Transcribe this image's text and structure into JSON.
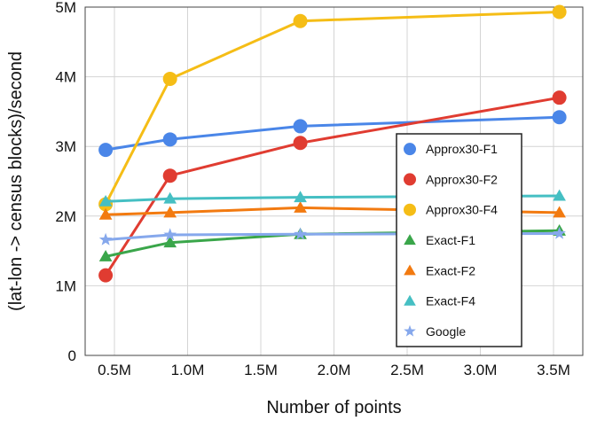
{
  "chart_data": {
    "type": "line",
    "xlabel": "Number of points",
    "ylabel": "(lat-lon -> census blocks)/second",
    "xlim": [
      0.3,
      3.7
    ],
    "ylim": [
      0,
      5
    ],
    "xticks": [
      0.5,
      1.0,
      1.5,
      2.0,
      2.5,
      3.0,
      3.5
    ],
    "xtick_labels": [
      "0.5M",
      "1.0M",
      "1.5M",
      "2.0M",
      "2.5M",
      "3.0M",
      "3.5M"
    ],
    "yticks": [
      0,
      1,
      2,
      3,
      4,
      5
    ],
    "ytick_labels": [
      "0",
      "1M",
      "2M",
      "3M",
      "4M",
      "5M"
    ],
    "grid": true,
    "legend_position": "right",
    "x": [
      0.44,
      0.88,
      1.77,
      3.54
    ],
    "series": [
      {
        "name": "Approx30-F1",
        "color": "#4a86e8",
        "marker": "circle",
        "values": [
          2.95,
          3.1,
          3.29,
          3.42
        ]
      },
      {
        "name": "Approx30-F2",
        "color": "#e03c31",
        "marker": "circle",
        "values": [
          1.15,
          2.58,
          3.05,
          3.7
        ]
      },
      {
        "name": "Approx30-F4",
        "color": "#f5bd16",
        "marker": "circle",
        "values": [
          2.17,
          3.97,
          4.8,
          4.93
        ]
      },
      {
        "name": "Exact-F1",
        "color": "#3aa64a",
        "marker": "triangle",
        "values": [
          1.42,
          1.62,
          1.74,
          1.79
        ]
      },
      {
        "name": "Exact-F2",
        "color": "#f27a10",
        "marker": "triangle",
        "values": [
          2.02,
          2.05,
          2.12,
          2.05
        ]
      },
      {
        "name": "Exact-F4",
        "color": "#45bfc3",
        "marker": "triangle",
        "values": [
          2.21,
          2.25,
          2.27,
          2.29
        ]
      },
      {
        "name": "Google",
        "color": "#86a8ec",
        "marker": "star",
        "values": [
          1.66,
          1.73,
          1.74,
          1.75
        ]
      }
    ]
  }
}
